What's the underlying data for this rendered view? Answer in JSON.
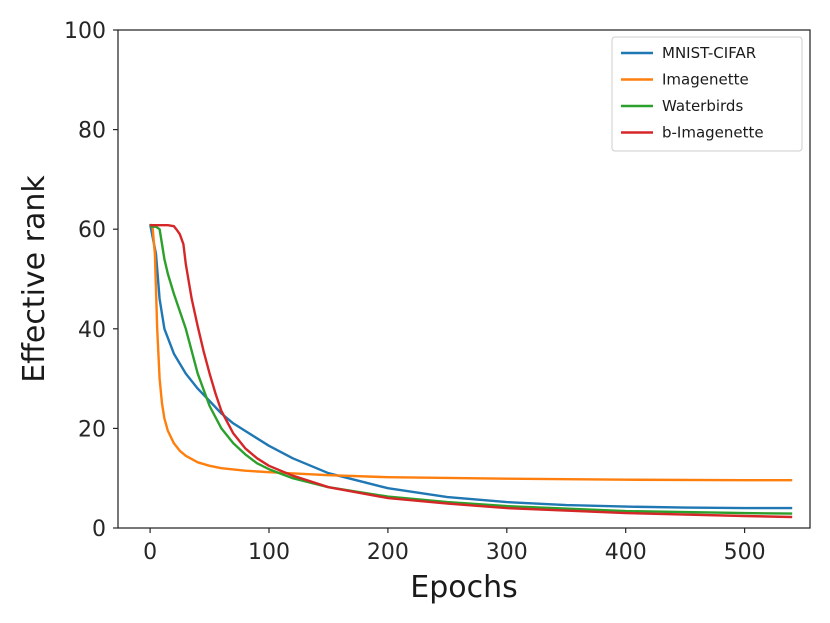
{
  "chart_data": {
    "type": "line",
    "title": "",
    "xlabel": "Epochs",
    "ylabel": "Effective rank",
    "xlim": [
      -27,
      555
    ],
    "ylim": [
      0,
      100
    ],
    "xticks": [
      0,
      100,
      200,
      300,
      400,
      500
    ],
    "yticks": [
      0,
      20,
      40,
      60,
      80,
      100
    ],
    "grid": false,
    "legend_position": "top-right",
    "series": [
      {
        "name": "MNIST-CIFAR",
        "color": "#1f77b4",
        "x": [
          0,
          5,
          8,
          12,
          20,
          30,
          40,
          50,
          60,
          70,
          80,
          100,
          120,
          150,
          175,
          200,
          250,
          300,
          350,
          400,
          450,
          500,
          540
        ],
        "y": [
          61,
          55,
          46,
          40,
          35,
          31,
          28,
          25.5,
          23,
          21,
          19.5,
          16.5,
          14,
          11,
          9.5,
          8,
          6.2,
          5.2,
          4.6,
          4.3,
          4.1,
          4.0,
          4.0
        ]
      },
      {
        "name": "Imagenette",
        "color": "#ff7f0e",
        "x": [
          0,
          2,
          4,
          6,
          8,
          10,
          12,
          15,
          20,
          25,
          30,
          40,
          50,
          60,
          80,
          100,
          150,
          200,
          300,
          400,
          500,
          540
        ],
        "y": [
          61,
          60.5,
          55,
          40,
          30,
          25,
          22,
          19.5,
          17,
          15.5,
          14.5,
          13.2,
          12.5,
          12,
          11.5,
          11.2,
          10.6,
          10.2,
          9.9,
          9.7,
          9.6,
          9.6
        ]
      },
      {
        "name": "Waterbirds",
        "color": "#2ca02c",
        "x": [
          0,
          5,
          8,
          10,
          12,
          15,
          20,
          30,
          40,
          50,
          60,
          70,
          80,
          90,
          100,
          120,
          150,
          200,
          250,
          300,
          400,
          500,
          540
        ],
        "y": [
          60.5,
          60.5,
          60,
          57,
          54,
          51,
          47,
          40,
          31,
          24.5,
          20,
          17,
          14.8,
          13,
          11.8,
          10,
          8.2,
          6.3,
          5.2,
          4.4,
          3.4,
          3.0,
          2.9
        ]
      },
      {
        "name": "b-Imagenette",
        "color": "#d62728",
        "x": [
          0,
          5,
          10,
          15,
          20,
          22,
          25,
          28,
          30,
          35,
          40,
          45,
          50,
          55,
          60,
          70,
          80,
          90,
          100,
          120,
          150,
          200,
          250,
          300,
          400,
          500,
          540
        ],
        "y": [
          60.8,
          60.8,
          60.8,
          60.8,
          60.6,
          60,
          59,
          57,
          53,
          46,
          40.5,
          35.5,
          31,
          27,
          23.5,
          19,
          16,
          14,
          12.5,
          10.5,
          8.2,
          6,
          4.9,
          4.0,
          3.0,
          2.4,
          2.2
        ]
      }
    ]
  }
}
